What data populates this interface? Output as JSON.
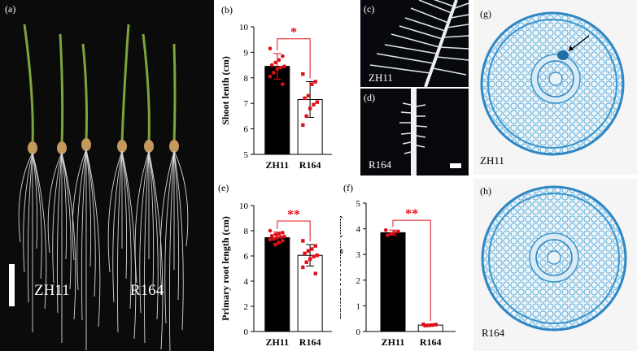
{
  "panel_a": {
    "label": "(a)",
    "group_left": "ZH11",
    "group_right": "R164"
  },
  "panel_b": {
    "label": "(b)"
  },
  "panel_c": {
    "label": "(c)",
    "caption": "ZH11"
  },
  "panel_d": {
    "label": "(d)",
    "caption": "R164"
  },
  "panel_e": {
    "label": "(e)"
  },
  "panel_f": {
    "label": "(f)"
  },
  "panel_g": {
    "label": "(g)",
    "caption": "ZH11"
  },
  "panel_h": {
    "label": "(h)",
    "caption": "R164"
  },
  "colors": {
    "bar_zh11": "#000000",
    "bar_r164": "#ffffff",
    "points": "#e0101a",
    "significance": "#e0101a",
    "stain": "#4aa3d8"
  },
  "chart_data": [
    {
      "id": "b",
      "type": "bar",
      "categories": [
        "ZH11",
        "R164"
      ],
      "values": [
        8.45,
        7.15
      ],
      "errors": [
        0.5,
        0.7
      ],
      "points": [
        [
          9.15,
          8.85,
          8.7,
          8.6,
          8.5,
          8.45,
          8.4,
          8.35,
          8.2,
          8.05,
          7.75
        ],
        [
          8.15,
          7.85,
          7.75,
          7.3,
          7.2,
          7.05,
          6.95,
          6.8,
          6.5,
          6.15
        ]
      ],
      "ylabel": "Shoot lenth (cm)",
      "ylim": [
        5,
        10
      ],
      "yticks": [
        5,
        6,
        7,
        8,
        9,
        10
      ],
      "significance": "*"
    },
    {
      "id": "e",
      "type": "bar",
      "categories": [
        "ZH11",
        "R164"
      ],
      "values": [
        7.45,
        6.05
      ],
      "errors": [
        0.45,
        0.85
      ],
      "points": [
        [
          8.0,
          7.85,
          7.75,
          7.7,
          7.6,
          7.55,
          7.5,
          7.45,
          7.35,
          7.3,
          7.2,
          7.05,
          6.9
        ],
        [
          7.2,
          6.8,
          6.55,
          6.4,
          6.2,
          6.05,
          5.95,
          5.75,
          5.5,
          5.1,
          4.6
        ]
      ],
      "ylabel": "Primary root length (cm)",
      "ylim": [
        0,
        10
      ],
      "yticks": [
        0,
        2,
        4,
        6,
        8,
        10
      ],
      "significance": "**"
    },
    {
      "id": "f",
      "type": "bar",
      "categories": [
        "ZH11",
        "R164"
      ],
      "values": [
        3.85,
        0.25
      ],
      "errors": [
        0.1,
        0.03
      ],
      "points": [
        [
          3.95,
          3.9,
          3.85,
          3.8,
          3.75
        ],
        [
          0.28,
          0.27,
          0.25,
          0.24,
          0.23
        ]
      ],
      "ylabel": "Lateral root length (mm)",
      "ylim": [
        0,
        5
      ],
      "yticks": [
        0,
        1,
        2,
        3,
        4,
        5
      ],
      "significance": "**"
    }
  ]
}
